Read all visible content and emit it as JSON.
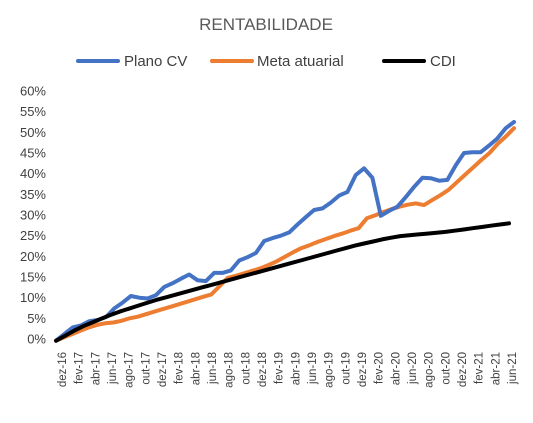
{
  "chart_data": {
    "type": "line",
    "title": "RENTABILIDADE",
    "xlabel": "",
    "ylabel": "",
    "ylim": [
      0,
      60
    ],
    "y_ticks": [
      "0%",
      "5%",
      "10%",
      "15%",
      "20%",
      "25%",
      "30%",
      "35%",
      "40%",
      "45%",
      "50%",
      "55%",
      "60%"
    ],
    "grid": false,
    "legend_position": "top",
    "x_labels": [
      "dez-16",
      "fev-17",
      "abr-17",
      "jun-17",
      "ago-17",
      "out-17",
      "dez-17",
      "fev-18",
      "abr-18",
      "jun-18",
      "ago-18",
      "out-18",
      "dez-18",
      "fev-19",
      "abr-19",
      "jun-19",
      "ago-19",
      "out-19",
      "dez-19",
      "fev-20",
      "abr-20",
      "jun-20",
      "ago-20",
      "out-20",
      "dez-20",
      "fev-21",
      "abr-21",
      "jun-21"
    ],
    "series": [
      {
        "name": "Plano CV",
        "color": "#4472c4",
        "values": [
          -0.4,
          1.2,
          2.8,
          3.3,
          4.3,
          4.6,
          5.3,
          7.4,
          8.8,
          10.4,
          10.0,
          9.8,
          10.6,
          12.6,
          13.5,
          14.6,
          15.6,
          14.2,
          14.0,
          16.0,
          16.0,
          16.6,
          19.0,
          19.8,
          20.8,
          23.7,
          24.4,
          25.0,
          25.8,
          27.7,
          29.5,
          31.2,
          31.6,
          33.0,
          34.7,
          35.6,
          39.7,
          41.3,
          39.0,
          29.8,
          31.0,
          32.0,
          34.3,
          36.8,
          39.0,
          38.9,
          38.3,
          38.5,
          42.0,
          45.0,
          45.2,
          45.2,
          46.8,
          48.5,
          51.0,
          52.5
        ]
      },
      {
        "name": "Meta atuarial",
        "color": "#ed7d31",
        "values": [
          -0.4,
          0.4,
          1.2,
          2.0,
          2.8,
          3.4,
          3.8,
          4.0,
          4.4,
          5.0,
          5.4,
          6.0,
          6.6,
          7.2,
          7.8,
          8.4,
          9.0,
          9.6,
          10.2,
          10.8,
          12.8,
          14.8,
          15.3,
          15.9,
          16.5,
          17.1,
          17.9,
          18.8,
          19.9,
          21.0,
          22.0,
          22.7,
          23.5,
          24.2,
          24.9,
          25.5,
          26.2,
          26.8,
          29.2,
          29.9,
          30.7,
          31.4,
          32.0,
          32.5,
          32.8,
          32.4,
          33.6,
          34.8,
          36.1,
          37.9,
          39.7,
          41.5,
          43.3,
          45.0,
          47.2,
          49.0,
          51.0
        ]
      },
      {
        "name": "CDI",
        "color": "#000000",
        "values": [
          -0.4,
          0.8,
          2.0,
          3.1,
          4.0,
          4.9,
          5.8,
          6.6,
          7.3,
          8.0,
          8.7,
          9.4,
          10.0,
          10.6,
          11.2,
          11.8,
          12.4,
          13.0,
          13.6,
          14.2,
          14.8,
          15.4,
          16.0,
          16.6,
          17.2,
          17.8,
          18.4,
          19.0,
          19.6,
          20.2,
          20.8,
          21.4,
          22.0,
          22.6,
          23.1,
          23.6,
          24.1,
          24.5,
          24.9,
          25.1,
          25.3,
          25.5,
          25.7,
          25.9,
          26.2,
          26.5,
          26.8,
          27.1,
          27.4,
          27.7,
          28.0
        ]
      }
    ]
  }
}
